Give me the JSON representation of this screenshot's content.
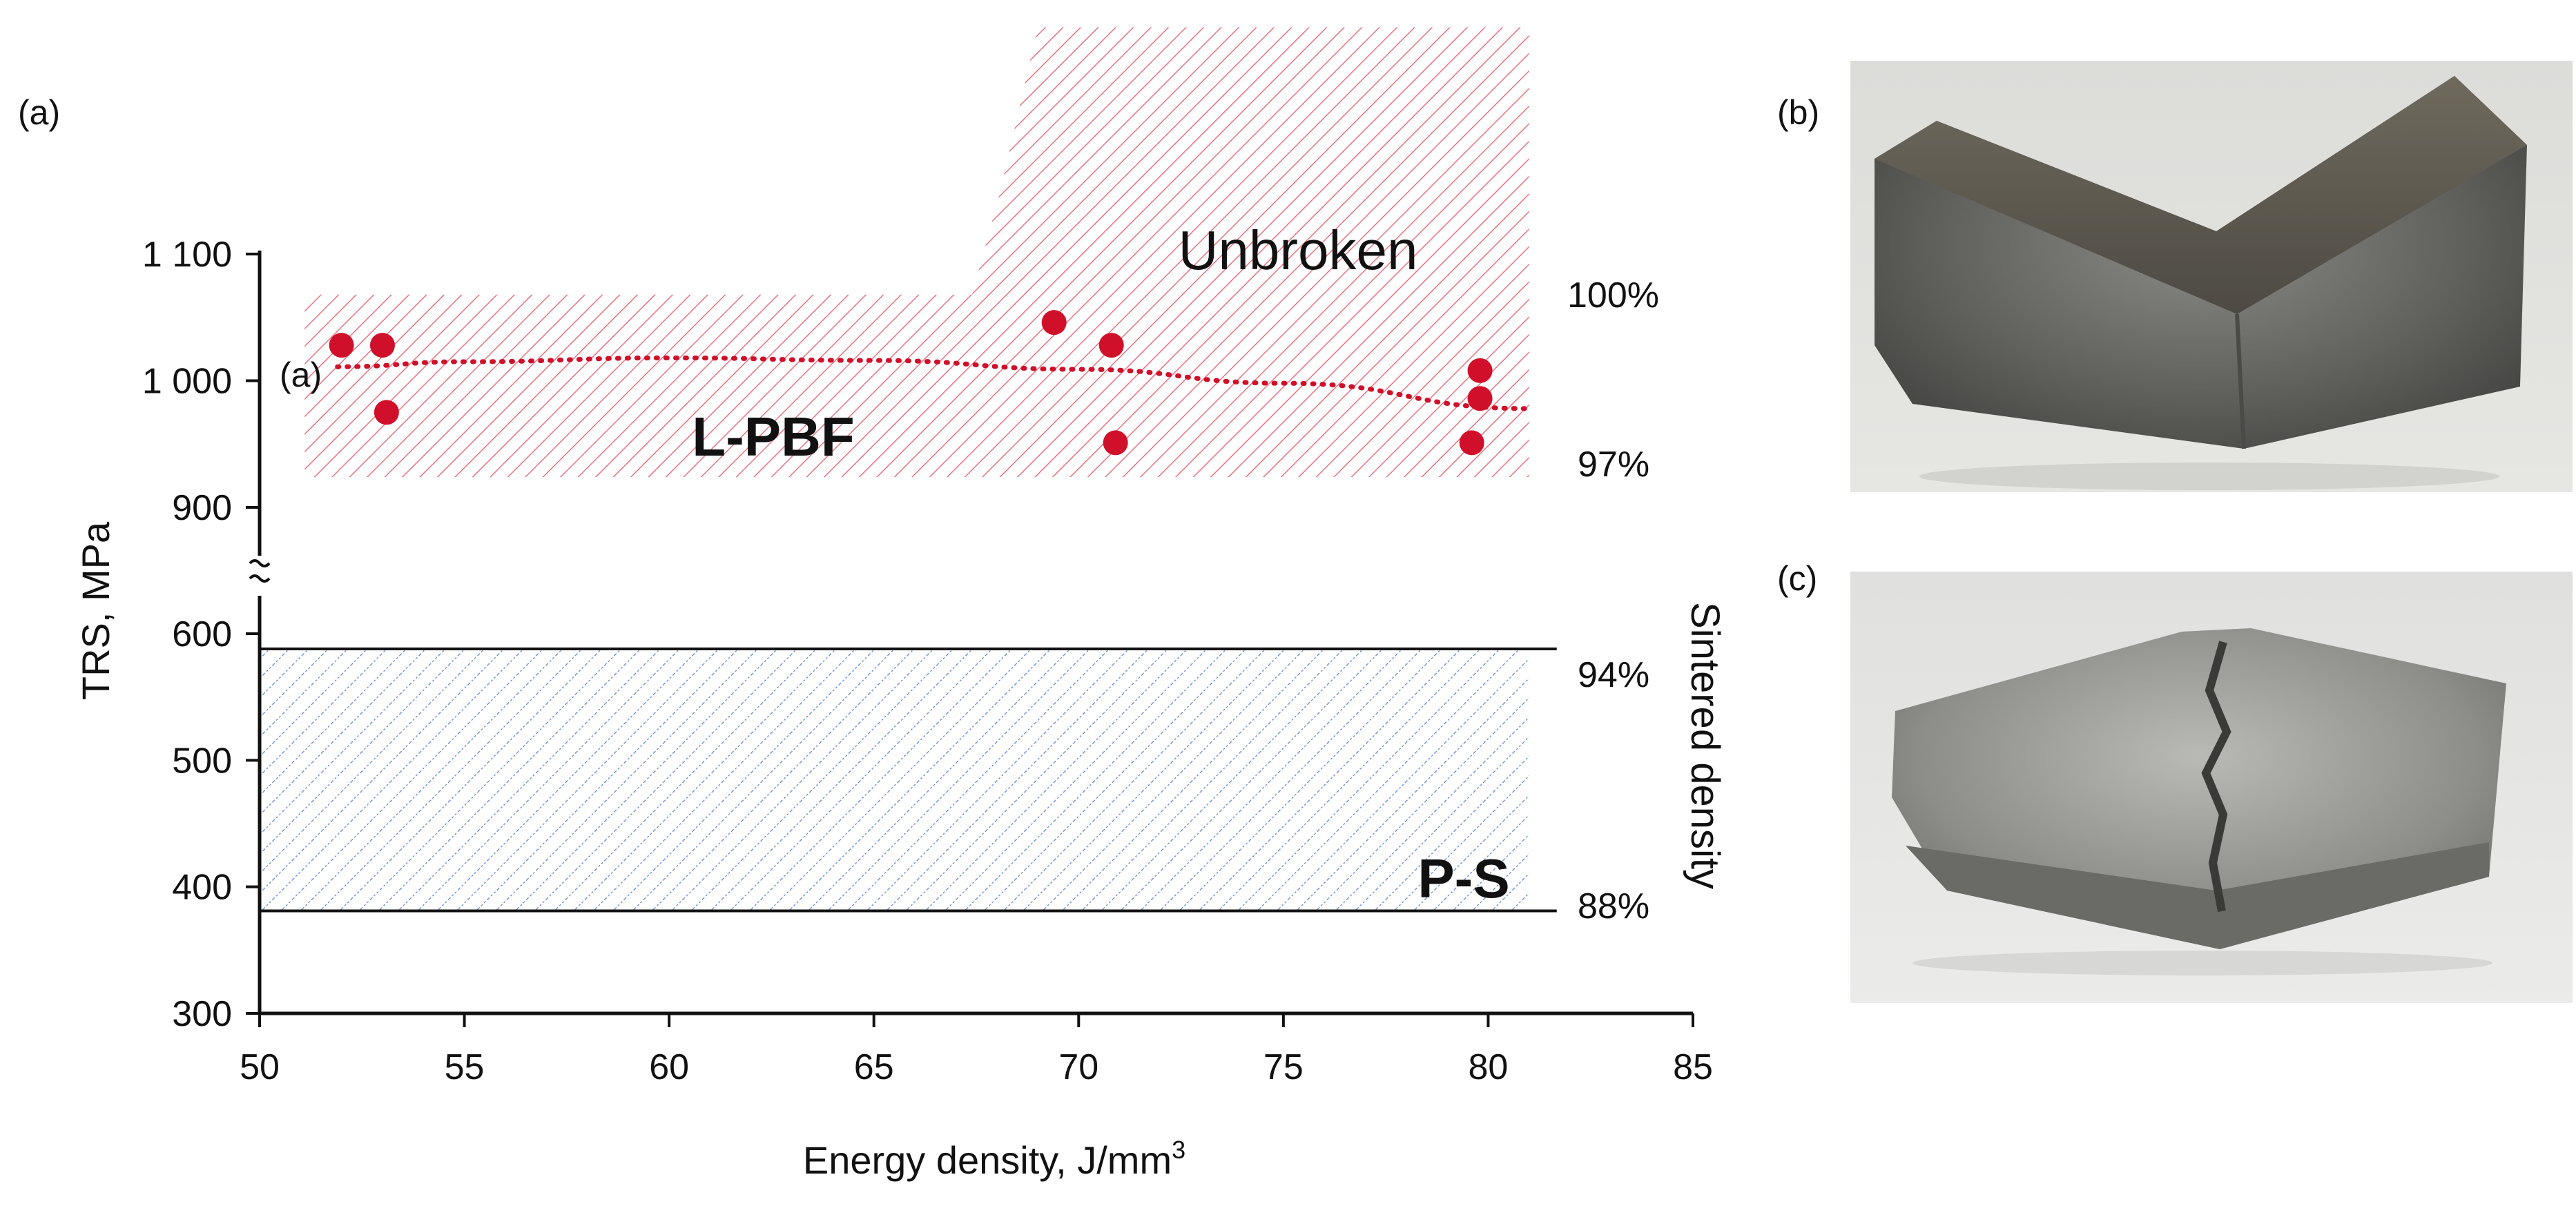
{
  "panels": {
    "a": "(a)",
    "b": "(b)",
    "c": "(c)"
  },
  "chart_data": {
    "type": "scatter",
    "title": "",
    "xlabel": "Energy density, J/mm",
    "xlabel_superscript": "3",
    "ylabel": "TRS, MPa",
    "xlim": [
      50,
      85
    ],
    "ylim_upper_segment": [
      900,
      1100
    ],
    "ylim_lower_segment": [
      300,
      600
    ],
    "x_ticks": [
      50,
      55,
      60,
      65,
      70,
      75,
      80,
      85
    ],
    "x_tick_labels": [
      "50",
      "55",
      "60",
      "65",
      "70",
      "75",
      "80",
      "85"
    ],
    "y_ticks_upper": [
      900,
      1000,
      1100
    ],
    "y_tick_labels_upper": [
      "900",
      "1 000",
      "1 100"
    ],
    "y_ticks_lower": [
      300,
      400,
      500,
      600
    ],
    "y_tick_labels_lower": [
      "300",
      "400",
      "500",
      "600"
    ],
    "axis_break": "y between 600 and 900",
    "series": [
      {
        "name": "L-PBF specimens",
        "color": "#d0102a",
        "points": [
          {
            "x": 52.0,
            "y": 1028
          },
          {
            "x": 53.0,
            "y": 1028
          },
          {
            "x": 53.1,
            "y": 975
          },
          {
            "x": 69.4,
            "y": 1046
          },
          {
            "x": 70.8,
            "y": 1028
          },
          {
            "x": 70.9,
            "y": 951
          },
          {
            "x": 79.6,
            "y": 951
          },
          {
            "x": 79.8,
            "y": 1008
          },
          {
            "x": 79.8,
            "y": 986
          }
        ]
      },
      {
        "name": "trend (dotted)",
        "color": "#d0102a",
        "points": [
          {
            "x": 51.9,
            "y": 1011
          },
          {
            "x": 55,
            "y": 1015
          },
          {
            "x": 60,
            "y": 1018
          },
          {
            "x": 65,
            "y": 1016
          },
          {
            "x": 70,
            "y": 1009
          },
          {
            "x": 75,
            "y": 998
          },
          {
            "x": 81,
            "y": 978
          }
        ]
      }
    ],
    "annotations": {
      "trend_label": "(a)",
      "unbroken": "Unbroken",
      "lpbf": "L-PBF",
      "ps": "P-S",
      "density_axis_label": "Sintered density",
      "density_100": "100%",
      "density_97": "97%",
      "density_94": "94%",
      "density_88": "88%"
    },
    "regions": [
      {
        "name": "L-PBF band",
        "x_range": [
          51.1,
          81.0
        ],
        "y_range": [
          924,
          1068
        ],
        "color": "#e8747f"
      },
      {
        "name": "Unbroken zone",
        "x_range": [
          67.4,
          81.0
        ],
        "y_range": [
          924,
          1279
        ],
        "color": "#e8747f"
      },
      {
        "name": "P-S band",
        "x_range": [
          50.0,
          81.0
        ],
        "y_range": [
          381,
          588
        ],
        "color": "#7a96d6"
      }
    ]
  }
}
